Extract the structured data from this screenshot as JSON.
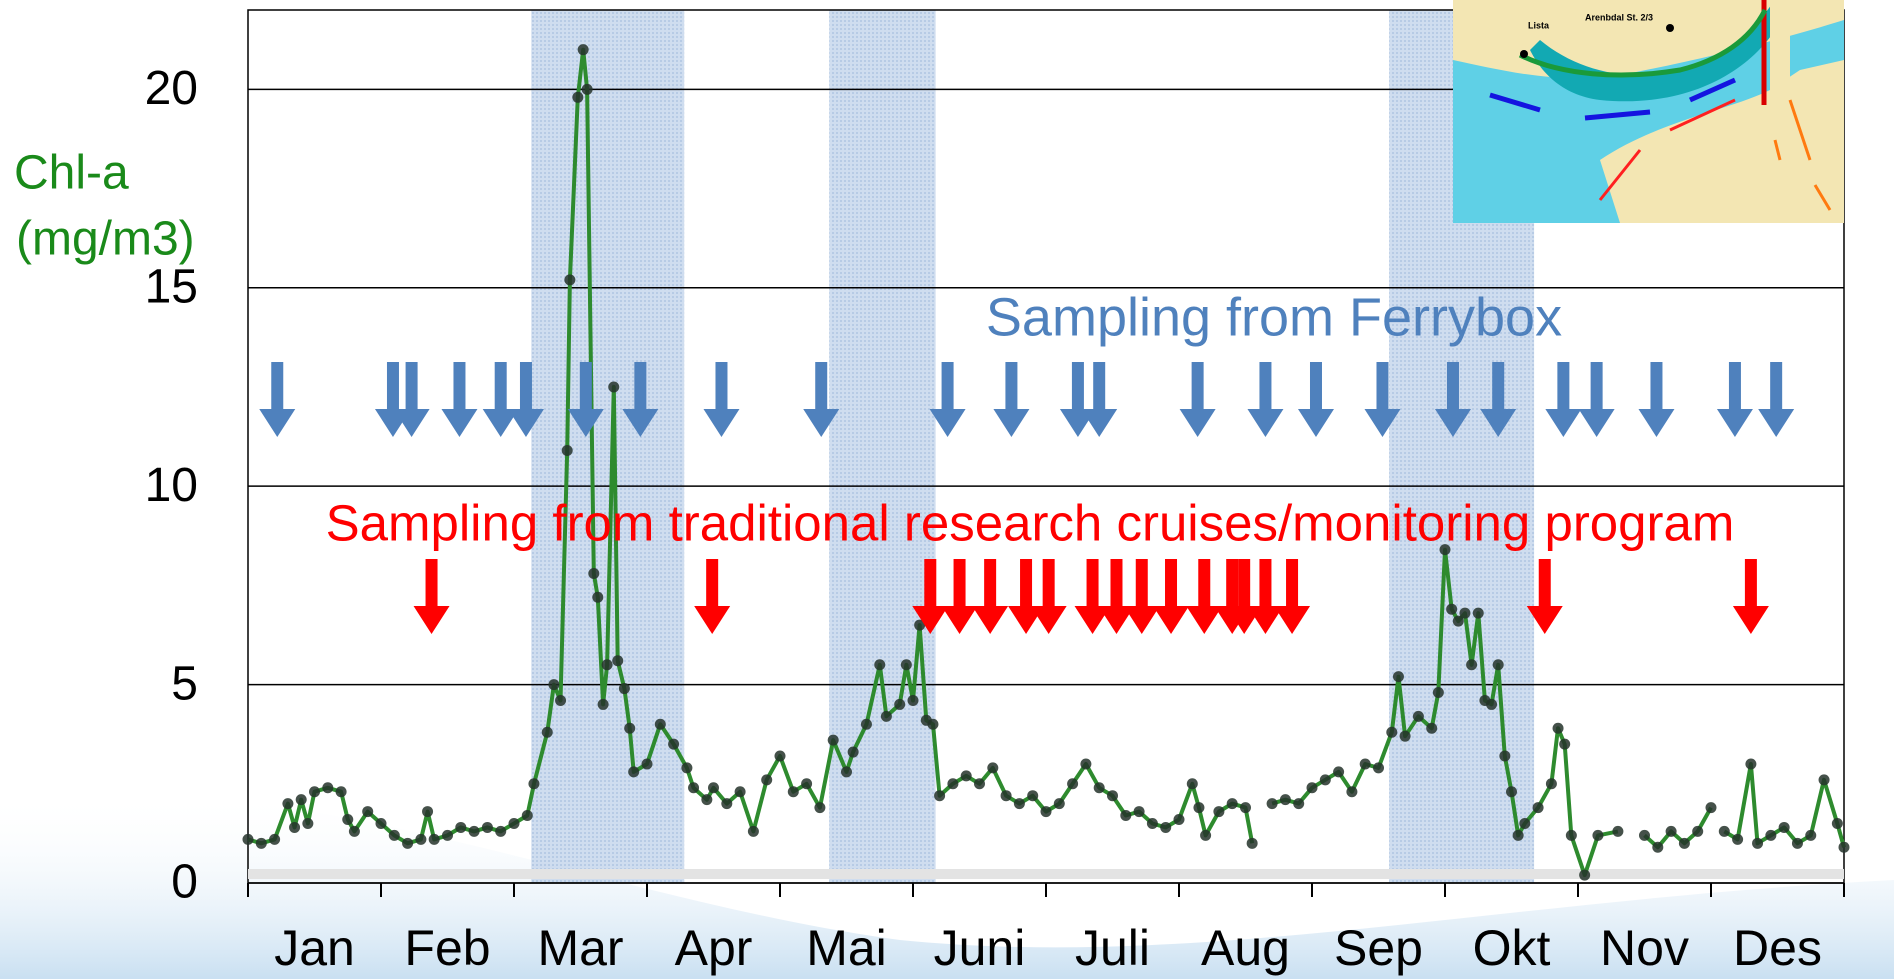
{
  "chart_data": {
    "type": "line",
    "ylabel": [
      "Chl-a",
      "(mg/m3)"
    ],
    "categories": [
      "Jan",
      "Feb",
      "Mar",
      "Apr",
      "Mai",
      "Juni",
      "Juli",
      "Aug",
      "Sep",
      "Okt",
      "Nov",
      "Des"
    ],
    "xlim": [
      0,
      12
    ],
    "xticks": [
      0,
      1,
      2,
      3,
      4,
      5,
      6,
      7,
      8,
      9,
      10,
      11,
      12
    ],
    "ylim": [
      0,
      22
    ],
    "yticks": [
      0,
      5,
      10,
      15,
      20
    ],
    "grid": true,
    "x": [
      0,
      0.1,
      0.2,
      0.3,
      0.35,
      0.4,
      0.45,
      0.5,
      0.6,
      0.7,
      0.75,
      0.8,
      0.9,
      1.0,
      1.1,
      1.2,
      1.3,
      1.35,
      1.4,
      1.5,
      1.6,
      1.7,
      1.8,
      1.9,
      2.0,
      2.1,
      2.15,
      2.25,
      2.3,
      2.35,
      2.4,
      2.42,
      2.48,
      2.52,
      2.55,
      2.6,
      2.63,
      2.67,
      2.7,
      2.75,
      2.78,
      2.83,
      2.87,
      2.9,
      3.0,
      3.1,
      3.2,
      3.3,
      3.35,
      3.45,
      3.5,
      3.6,
      3.7,
      3.8,
      3.9,
      4.0,
      4.1,
      4.2,
      4.3,
      4.4,
      4.5,
      4.55,
      4.65,
      4.75,
      4.8,
      4.9,
      4.95,
      5.0,
      5.05,
      5.1,
      5.15,
      5.2,
      5.3,
      5.4,
      5.5,
      5.6,
      5.7,
      5.8,
      5.9,
      6.0,
      6.1,
      6.2,
      6.3,
      6.4,
      6.5,
      6.6,
      6.7,
      6.8,
      6.9,
      7.0,
      7.1,
      7.15,
      7.2,
      7.3,
      7.4,
      7.5,
      7.55,
      7.6,
      7.7,
      7.8,
      7.9,
      8.0,
      8.1,
      8.2,
      8.3,
      8.4,
      8.5,
      8.6,
      8.65,
      8.7,
      8.8,
      8.9,
      8.95,
      9.0,
      9.05,
      9.1,
      9.15,
      9.2,
      9.25,
      9.3,
      9.35,
      9.4,
      9.45,
      9.5,
      9.55,
      9.6,
      9.7,
      9.8,
      9.85,
      9.9,
      9.95,
      10.05,
      10.15,
      10.3,
      10.4,
      10.5,
      10.6,
      10.7,
      10.8,
      10.9,
      11.0,
      11.05,
      11.1,
      11.2,
      11.3,
      11.35,
      11.45,
      11.55,
      11.65,
      11.75,
      11.85,
      11.95,
      12.0
    ],
    "series": [
      {
        "color": "#2e8b2e",
        "marker_color": "#24332a",
        "values": [
          1.1,
          1.0,
          1.1,
          2.0,
          1.4,
          2.1,
          1.5,
          2.3,
          2.4,
          2.3,
          1.6,
          1.3,
          1.8,
          1.5,
          1.2,
          1.0,
          1.1,
          1.8,
          1.1,
          1.2,
          1.4,
          1.3,
          1.4,
          1.3,
          1.5,
          1.7,
          2.5,
          3.8,
          5.0,
          4.6,
          10.9,
          15.2,
          19.8,
          21.0,
          20.0,
          7.8,
          7.2,
          4.5,
          5.5,
          12.5,
          5.6,
          4.9,
          3.9,
          2.8,
          3.0,
          4.0,
          3.5,
          2.9,
          2.4,
          2.1,
          2.4,
          2.0,
          2.3,
          1.3,
          2.6,
          3.2,
          2.3,
          2.5,
          1.9,
          3.6,
          2.8,
          3.3,
          4.0,
          5.5,
          4.2,
          4.5,
          5.5,
          4.6,
          6.5,
          4.1,
          4.0,
          2.2,
          2.5,
          2.7,
          2.5,
          2.9,
          2.2,
          2.0,
          2.2,
          1.8,
          2.0,
          2.5,
          3.0,
          2.4,
          2.2,
          1.7,
          1.8,
          1.5,
          1.4,
          1.6,
          2.5,
          1.9,
          1.2,
          1.8,
          2.0,
          1.9,
          1.0,
          null,
          2.0,
          2.1,
          2.0,
          2.4,
          2.6,
          2.8,
          2.3,
          3.0,
          2.9,
          3.8,
          5.2,
          3.7,
          4.2,
          3.9,
          4.8,
          8.4,
          6.9,
          6.6,
          6.8,
          5.5,
          6.8,
          4.6,
          4.5,
          5.5,
          3.2,
          2.3,
          1.2,
          1.5,
          1.9,
          2.5,
          3.9,
          3.5,
          1.2,
          0.2,
          1.2,
          1.3,
          null,
          1.2,
          0.9,
          1.3,
          1.0,
          1.3,
          1.9,
          null,
          1.3,
          1.1,
          3.0,
          1.0,
          1.2,
          1.4,
          1.0,
          1.2,
          2.6,
          1.5,
          0.9
        ]
      }
    ],
    "shaded_regions": [
      [
        2.13,
        3.28
      ],
      [
        4.37,
        5.17
      ],
      [
        8.58,
        9.67
      ]
    ],
    "shade_color": "#b8cce4",
    "annotations": [
      {
        "text": "Sampling from Ferrybox",
        "color": "#4f81bd",
        "samples": [
          0.22,
          1.09,
          1.23,
          1.59,
          1.9,
          2.09,
          2.54,
          2.95,
          3.56,
          4.31,
          5.26,
          5.74,
          6.24,
          6.4,
          7.14,
          7.65,
          8.03,
          8.53,
          9.06,
          9.4,
          9.89,
          10.14,
          10.59,
          11.18,
          11.49
        ]
      },
      {
        "text": "Sampling from traditional research cruises/monitoring program",
        "color": "#ff0000",
        "samples": [
          1.38,
          3.49,
          5.13,
          5.35,
          5.58,
          5.85,
          6.02,
          6.35,
          6.53,
          6.72,
          6.94,
          7.19,
          7.4,
          7.49,
          7.65,
          7.85,
          9.75,
          11.3
        ]
      }
    ],
    "inset_labels": [
      "Lista",
      "Arenbdal St. 2/3"
    ]
  }
}
